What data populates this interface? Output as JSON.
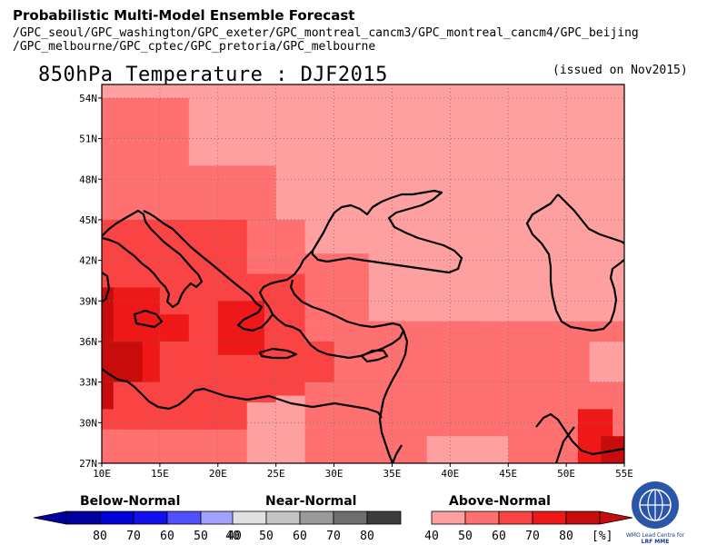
{
  "header": {
    "title": "Probabilistic Multi-Model Ensemble Forecast",
    "models_line1": "/GPC_seoul/GPC_washington/GPC_exeter/GPC_montreal_cancm3/GPC_montreal_cancm4/GPC_beijing",
    "models_line2": "/GPC_melbourne/GPC_cptec/GPC_pretoria/GPC_melbourne"
  },
  "map": {
    "title": "850hPa Temperature : DJF2015",
    "issued": "(issued on Nov2015)",
    "lon_labels": [
      "10E",
      "15E",
      "20E",
      "25E",
      "30E",
      "35E",
      "40E",
      "45E",
      "50E",
      "55E"
    ],
    "lat_labels": [
      "54N",
      "51N",
      "48N",
      "45N",
      "42N",
      "39N",
      "36N",
      "33N",
      "30N",
      "27N"
    ],
    "lon_range": [
      10,
      55
    ],
    "lat_range": [
      27,
      55
    ],
    "grid_step_deg": 2.5,
    "colors": {
      "above_40": "#ffa0a0",
      "above_50": "#ff7070",
      "above_60": "#fa4444",
      "above_70": "#ef1818",
      "above_80": "#c80c0c"
    }
  },
  "legend": {
    "below": {
      "label": "Below-Normal",
      "values": [
        "80",
        "70",
        "60",
        "50",
        "40"
      ],
      "colors": [
        "#0000a0",
        "#0000d8",
        "#1010ee",
        "#5050ff",
        "#a0a0ff"
      ]
    },
    "near": {
      "label": "Near-Normal",
      "values": [
        "40",
        "50",
        "60",
        "70",
        "80"
      ],
      "colors": [
        "#e0e0e0",
        "#c4c4c4",
        "#9a9a9a",
        "#6e6e6e",
        "#3c3c3c"
      ]
    },
    "above": {
      "label": "Above-Normal",
      "values": [
        "40",
        "50",
        "60",
        "70",
        "80"
      ],
      "colors": [
        "#ffa0a0",
        "#ff7070",
        "#fa4444",
        "#ef1818",
        "#c80c0c"
      ]
    },
    "unit": "[%]"
  },
  "logo": {
    "text1": "WMO Lead Centre for",
    "text2": "LRF MME"
  }
}
